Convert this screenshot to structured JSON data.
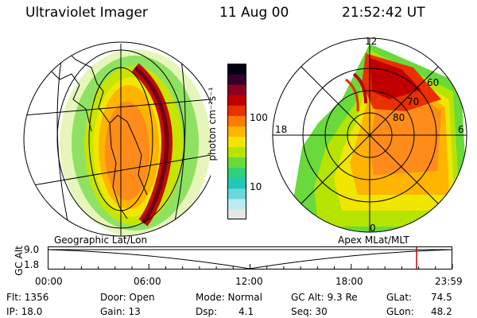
{
  "header": {
    "instrument": "Ultraviolet Imager",
    "date": "11 Aug 00",
    "time": "21:52:42 UT"
  },
  "colorbar": {
    "unit_label": "photon cm⁻²s⁻¹",
    "ticks": [
      "100",
      "10"
    ],
    "colors": [
      "#e6e6e6",
      "#b9ecf0",
      "#6ad7e0",
      "#20c8b8",
      "#2ed07a",
      "#69d93c",
      "#b4e400",
      "#f0e600",
      "#ffb400",
      "#ff7a00",
      "#e83000",
      "#c00000",
      "#8e0020",
      "#34002a",
      "#000010"
    ]
  },
  "polar": {
    "mlt_labels": [
      "12",
      "18",
      "6",
      "0"
    ],
    "lat_labels": [
      "60",
      "70",
      "80"
    ]
  },
  "altitude_plot": {
    "left_label": "Geographic Lat/Lon",
    "right_label": "Apex MLat/MLT",
    "axis_label": "GC Alt",
    "y_ticks": [
      "9.0",
      "1.8"
    ],
    "x_ticks": [
      "00:00",
      "06:00",
      "12:00",
      "18:00",
      "23:59"
    ],
    "current_time_marker_hours": 21.88,
    "marker_color": "#cc0000"
  },
  "footer": {
    "flt": "Flt: 1356",
    "ip": "IP: 18.0",
    "door": "Door: Open",
    "gain": "Gain: 13",
    "mode": "Mode: Normal",
    "dsp_label": "Dsp:",
    "dsp_value": "4.1",
    "gc_alt": "GC Alt: 9.3 Re",
    "seq": "Seq: 30",
    "glat_label": "GLat:",
    "glat_value": "74.5",
    "glon_label": "GLon:",
    "glon_value": "48.2"
  }
}
